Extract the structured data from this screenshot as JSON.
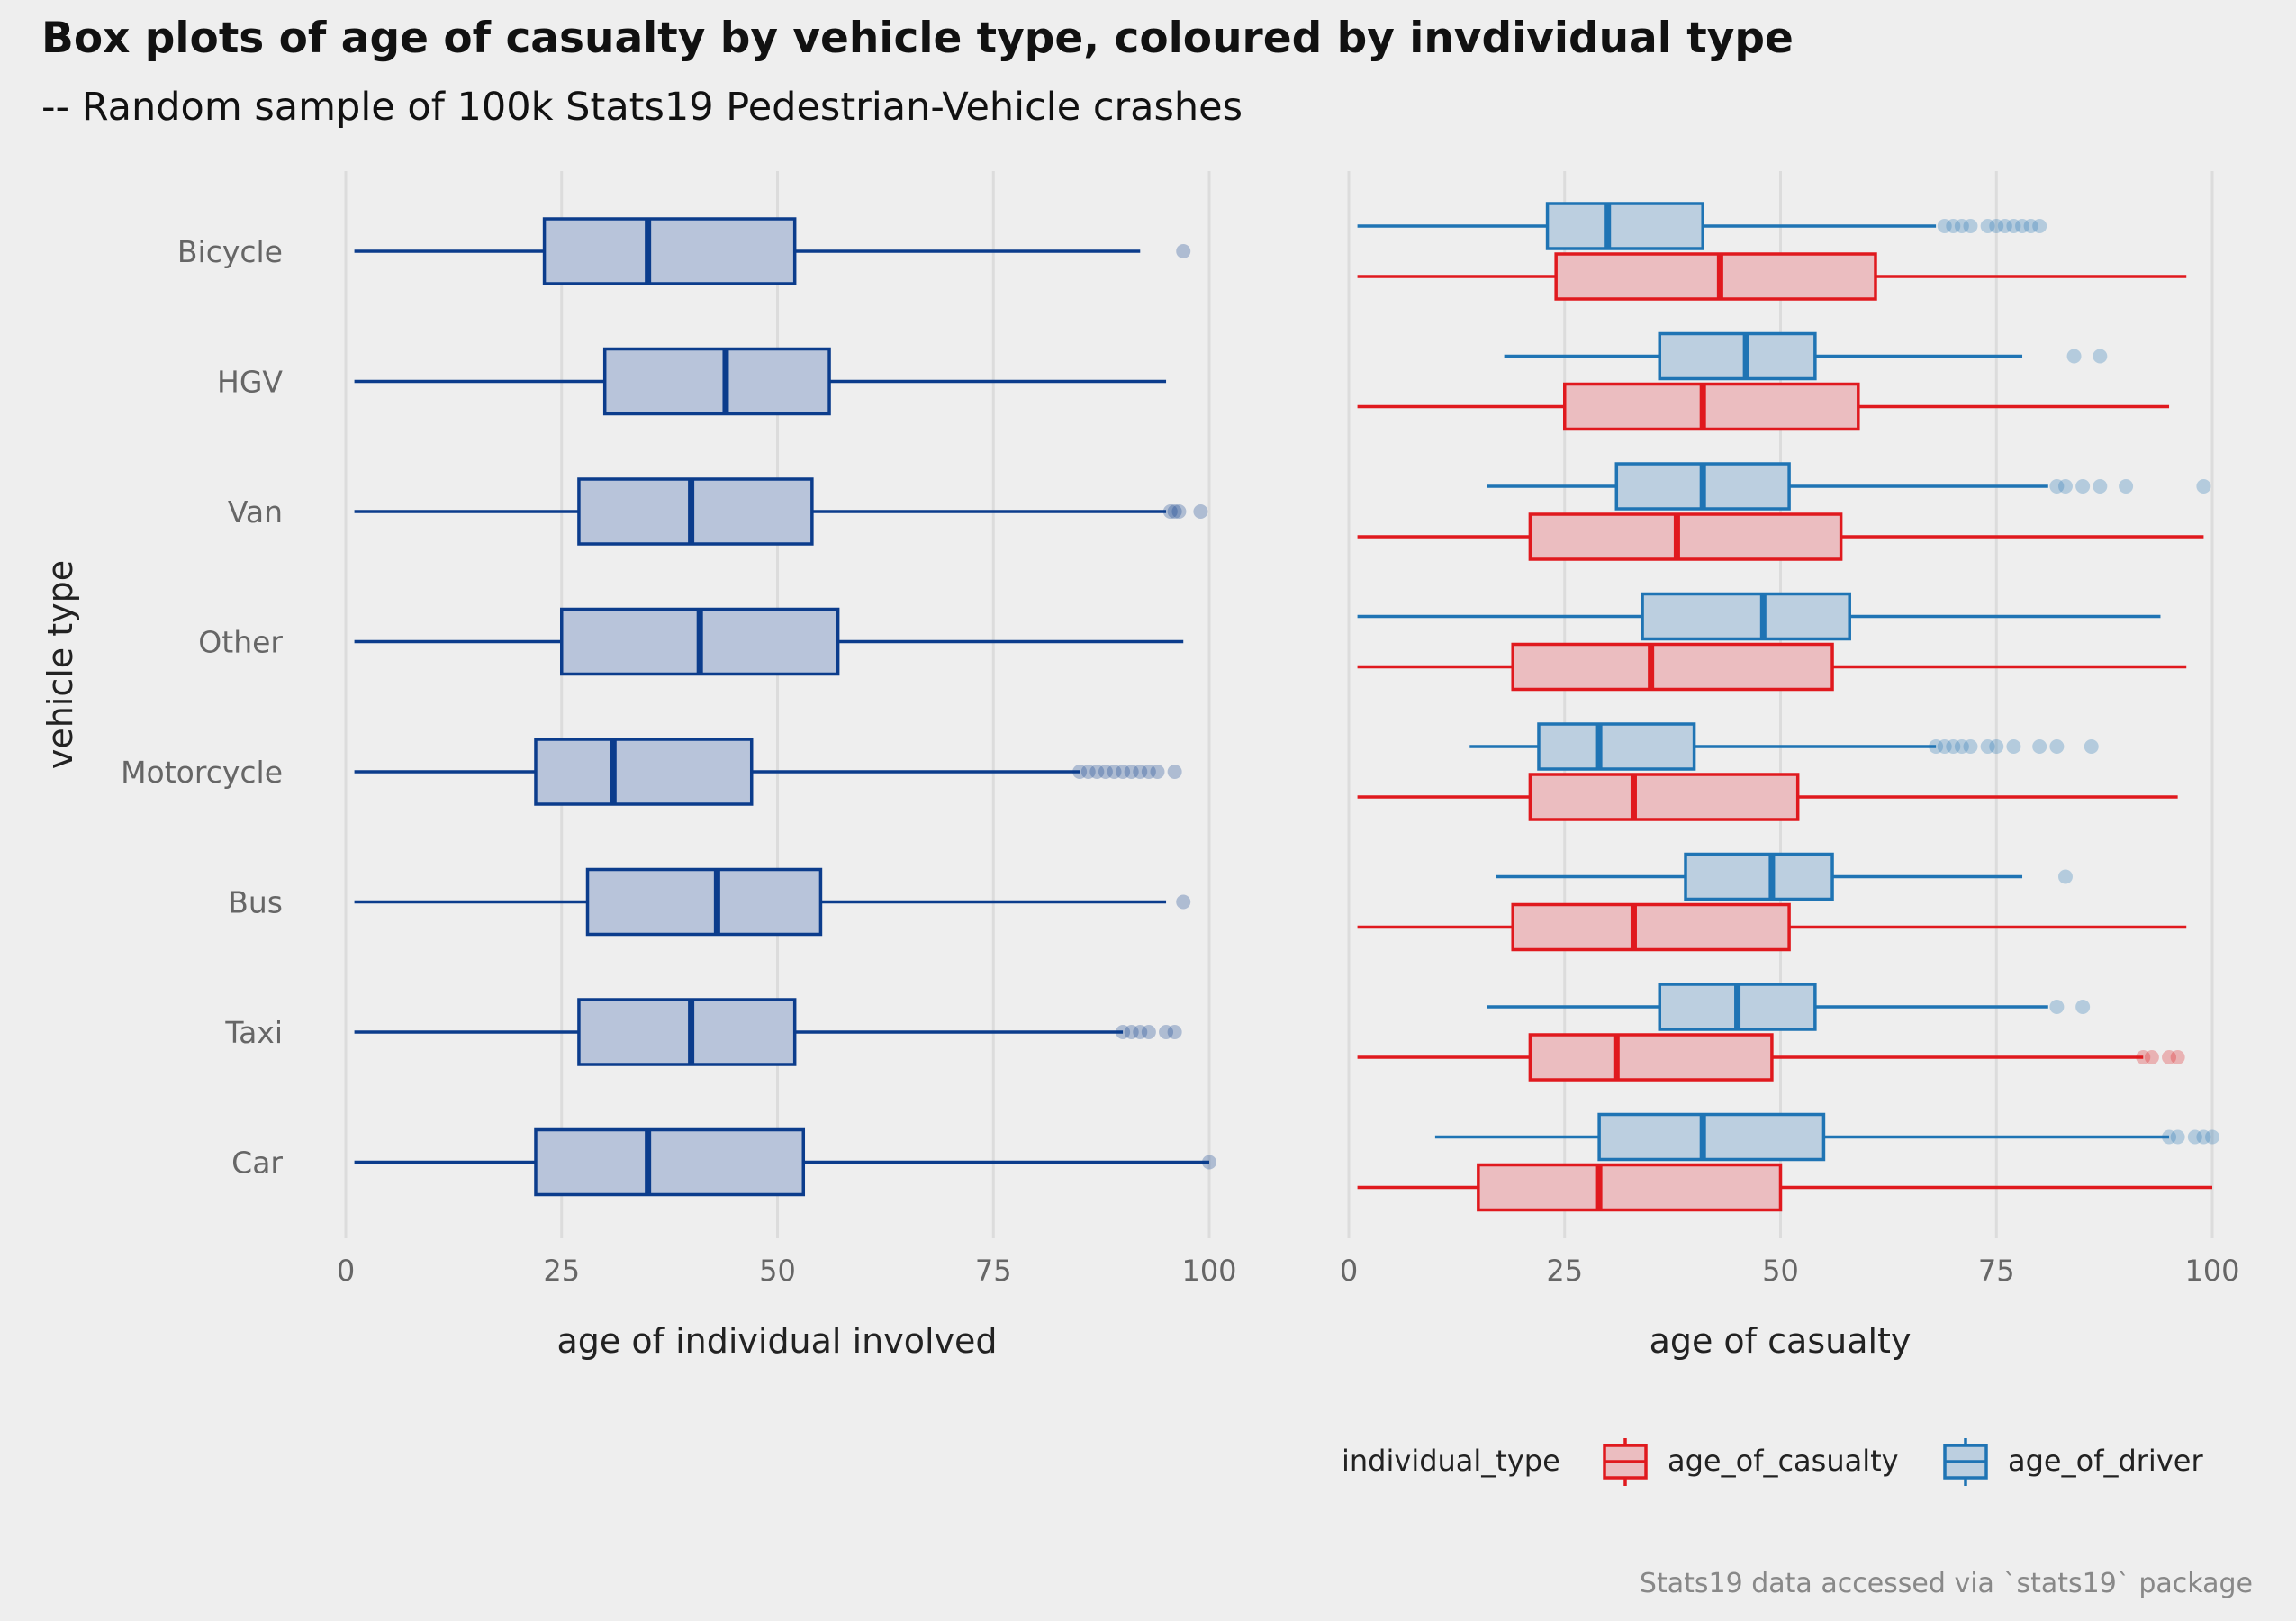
{
  "colors": {
    "background": "#eeeeee",
    "grid": "#dcdcdc",
    "left_stroke": "#0b3c8c",
    "left_fill": "#b8c4da",
    "casualty_stroke": "#e0191e",
    "casualty_fill": "#ebbdc0",
    "driver_stroke": "#1f74b4",
    "driver_fill": "#bccfe0",
    "title_text": "#111111",
    "axis_text": "#666666",
    "label_text": "#222222",
    "caption_text": "#888888"
  },
  "chart_data": {
    "type": "boxplot",
    "title": "Box plots of age of casualty by vehicle type, coloured by invdividual type",
    "subtitle": "-- Random sample of 100k Stats19 Pedestrian-Vehicle crashes",
    "caption": "Stats19 data accessed via `stats19` package",
    "ylabel": "vehicle type",
    "categories": [
      "Bicycle",
      "HGV",
      "Van",
      "Other",
      "Motorcycle",
      "Bus",
      "Taxi",
      "Car"
    ],
    "panels": [
      {
        "xlabel": "age of individual involved",
        "xlim": [
          0,
          100
        ],
        "xticks": [
          0,
          25,
          50,
          75,
          100
        ],
        "grid": true,
        "series": [
          {
            "color_key": "left",
            "boxes": [
              {
                "category": "Bicycle",
                "min": 1,
                "q1": 23,
                "median": 35,
                "q3": 52,
                "max": 92,
                "outliers": [
                  97
                ]
              },
              {
                "category": "HGV",
                "min": 1,
                "q1": 30,
                "median": 44,
                "q3": 56,
                "max": 95,
                "outliers": []
              },
              {
                "category": "Van",
                "min": 1,
                "q1": 27,
                "median": 40,
                "q3": 54,
                "max": 95,
                "outliers": [
                  95.5,
                  96,
                  96.5,
                  99
                ]
              },
              {
                "category": "Other",
                "min": 1,
                "q1": 25,
                "median": 41,
                "q3": 57,
                "max": 97,
                "outliers": []
              },
              {
                "category": "Motorcycle",
                "min": 1,
                "q1": 22,
                "median": 31,
                "q3": 47,
                "max": 85,
                "outliers": [
                  85,
                  86,
                  87,
                  88,
                  89,
                  90,
                  91,
                  92,
                  93,
                  94,
                  96
                ]
              },
              {
                "category": "Bus",
                "min": 1,
                "q1": 28,
                "median": 43,
                "q3": 55,
                "max": 95,
                "outliers": [
                  97
                ]
              },
              {
                "category": "Taxi",
                "min": 1,
                "q1": 27,
                "median": 40,
                "q3": 52,
                "max": 90,
                "outliers": [
                  90,
                  91,
                  92,
                  93,
                  95,
                  96
                ]
              },
              {
                "category": "Car",
                "min": 1,
                "q1": 22,
                "median": 35,
                "q3": 53,
                "max": 100,
                "outliers": [
                  100
                ]
              }
            ]
          }
        ]
      },
      {
        "xlabel": "age of casualty",
        "xlim": [
          0,
          100
        ],
        "xticks": [
          0,
          25,
          50,
          75,
          100
        ],
        "grid": true,
        "series": [
          {
            "name": "age_of_driver",
            "color_key": "driver",
            "boxes": [
              {
                "category": "Bicycle",
                "min": 1,
                "q1": 23,
                "median": 30,
                "q3": 41,
                "max": 68,
                "outliers": [
                  69,
                  70,
                  71,
                  72,
                  74,
                  75,
                  76,
                  77,
                  78,
                  79,
                  80
                ]
              },
              {
                "category": "HGV",
                "min": 18,
                "q1": 36,
                "median": 46,
                "q3": 54,
                "max": 78,
                "outliers": [
                  84,
                  87
                ]
              },
              {
                "category": "Van",
                "min": 16,
                "q1": 31,
                "median": 41,
                "q3": 51,
                "max": 81,
                "outliers": [
                  82,
                  83,
                  85,
                  87,
                  90,
                  99
                ]
              },
              {
                "category": "Other",
                "min": 1,
                "q1": 34,
                "median": 48,
                "q3": 58,
                "max": 94,
                "outliers": []
              },
              {
                "category": "Motorcycle",
                "min": 14,
                "q1": 22,
                "median": 29,
                "q3": 40,
                "max": 68,
                "outliers": [
                  68,
                  69,
                  70,
                  71,
                  72,
                  74,
                  75,
                  77,
                  80,
                  82,
                  86
                ]
              },
              {
                "category": "Bus",
                "min": 17,
                "q1": 39,
                "median": 49,
                "q3": 56,
                "max": 78,
                "outliers": [
                  83
                ]
              },
              {
                "category": "Taxi",
                "min": 16,
                "q1": 36,
                "median": 45,
                "q3": 54,
                "max": 81,
                "outliers": [
                  82,
                  85
                ]
              },
              {
                "category": "Car",
                "min": 10,
                "q1": 29,
                "median": 41,
                "q3": 55,
                "max": 95,
                "outliers": [
                  95,
                  96,
                  98,
                  99,
                  100
                ]
              }
            ]
          },
          {
            "name": "age_of_casualty",
            "color_key": "casualty",
            "boxes": [
              {
                "category": "Bicycle",
                "min": 1,
                "q1": 24,
                "median": 43,
                "q3": 61,
                "max": 97,
                "outliers": []
              },
              {
                "category": "HGV",
                "min": 1,
                "q1": 25,
                "median": 41,
                "q3": 59,
                "max": 95,
                "outliers": []
              },
              {
                "category": "Van",
                "min": 1,
                "q1": 21,
                "median": 38,
                "q3": 57,
                "max": 99,
                "outliers": []
              },
              {
                "category": "Other",
                "min": 1,
                "q1": 19,
                "median": 35,
                "q3": 56,
                "max": 97,
                "outliers": []
              },
              {
                "category": "Motorcycle",
                "min": 1,
                "q1": 21,
                "median": 33,
                "q3": 52,
                "max": 96,
                "outliers": []
              },
              {
                "category": "Bus",
                "min": 1,
                "q1": 19,
                "median": 33,
                "q3": 51,
                "max": 97,
                "outliers": []
              },
              {
                "category": "Taxi",
                "min": 1,
                "q1": 21,
                "median": 31,
                "q3": 49,
                "max": 92,
                "outliers": [
                  92,
                  93,
                  95,
                  96
                ]
              },
              {
                "category": "Car",
                "min": 1,
                "q1": 15,
                "median": 29,
                "q3": 50,
                "max": 100,
                "outliers": []
              }
            ]
          }
        ]
      }
    ],
    "legend": {
      "placement": "bottom-right",
      "title": "individual_type",
      "entries": [
        {
          "label": "age_of_casualty",
          "color_key": "casualty"
        },
        {
          "label": "age_of_driver",
          "color_key": "driver"
        }
      ]
    }
  }
}
